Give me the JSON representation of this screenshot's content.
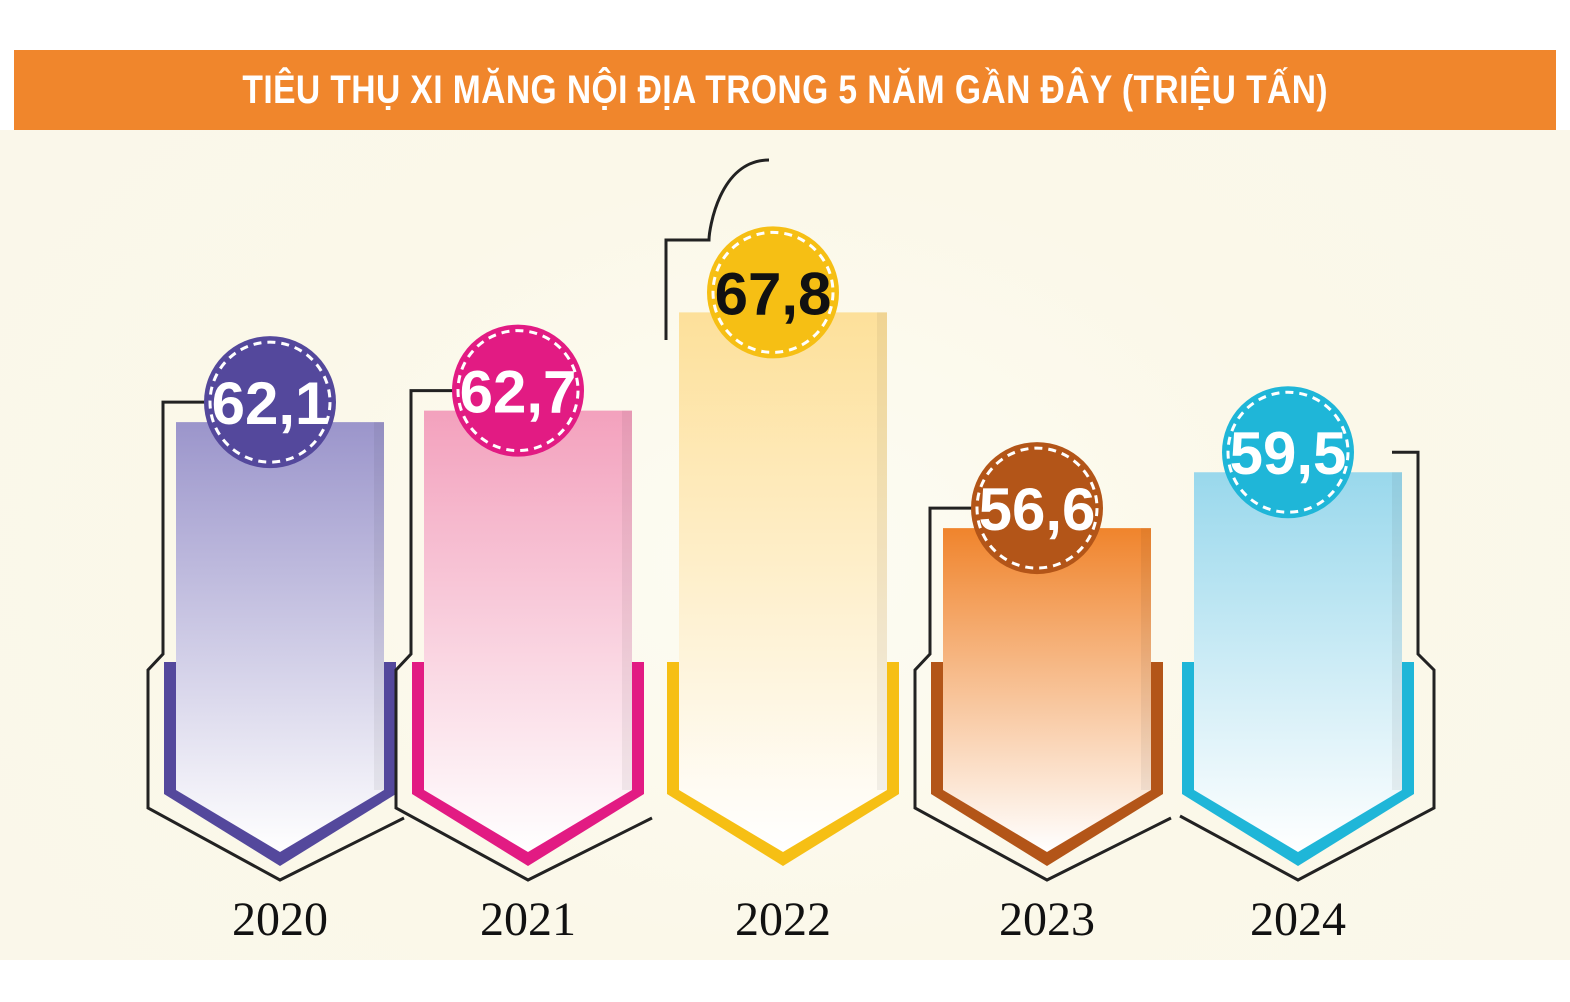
{
  "chart_data": {
    "type": "bar",
    "title": "TIÊU THỤ XI MĂNG NỘI ĐỊA TRONG 5 NĂM GẦN ĐÂY (TRIỆU TẤN)",
    "categories": [
      "2020",
      "2021",
      "2022",
      "2023",
      "2024"
    ],
    "values": [
      62.1,
      62.7,
      67.8,
      56.6,
      59.5
    ],
    "value_labels": [
      "62,1",
      "62,7",
      "67,8",
      "56,6",
      "59,5"
    ],
    "ylim": [
      43,
      70
    ],
    "grid": false,
    "legend": "none"
  },
  "colors": {
    "title_bar": "#f0862c",
    "bars": [
      {
        "dark": "#54489c",
        "light": "#9b95cb",
        "text": "#ffffff"
      },
      {
        "dark": "#e21b83",
        "light": "#f3a1bd",
        "text": "#ffffff"
      },
      {
        "dark": "#f6bf14",
        "light": "#fde09a",
        "text": "#111111"
      },
      {
        "dark": "#b35518",
        "light": "#f0842c",
        "text": "#ffffff"
      },
      {
        "dark": "#1fb6d8",
        "light": "#99d8ec",
        "text": "#ffffff"
      }
    ]
  }
}
